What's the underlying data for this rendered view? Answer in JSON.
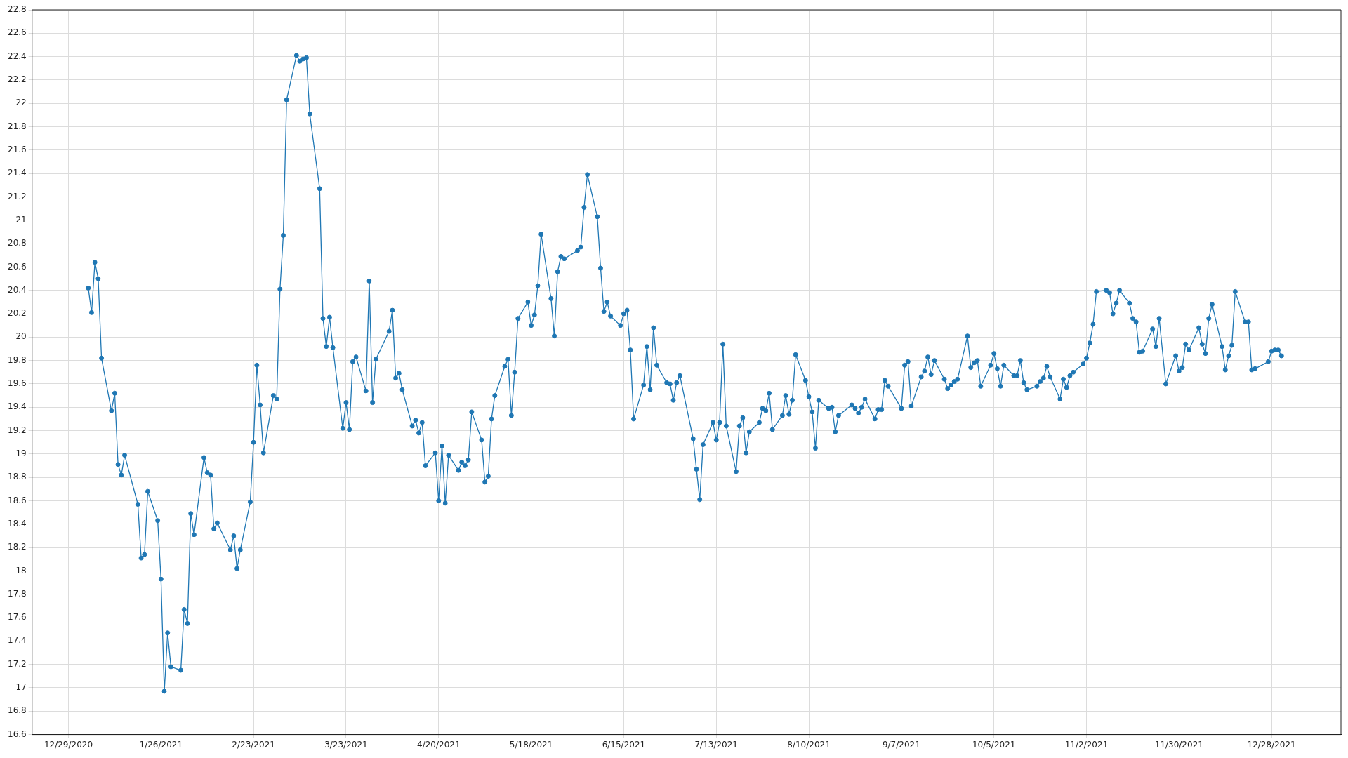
{
  "chart_data": {
    "type": "line",
    "color": "#1f77b4",
    "marker": "circle",
    "line_style": "solid",
    "grid": true,
    "xlim": [
      "2020-12-18",
      "2022-01-18"
    ],
    "xticks": [
      {
        "value": "2020-12-29",
        "label": "12/29/2020"
      },
      {
        "value": "2021-01-26",
        "label": "1/26/2021"
      },
      {
        "value": "2021-02-23",
        "label": "2/23/2021"
      },
      {
        "value": "2021-03-23",
        "label": "3/23/2021"
      },
      {
        "value": "2021-04-20",
        "label": "4/20/2021"
      },
      {
        "value": "2021-05-18",
        "label": "5/18/2021"
      },
      {
        "value": "2021-06-15",
        "label": "6/15/2021"
      },
      {
        "value": "2021-07-13",
        "label": "7/13/2021"
      },
      {
        "value": "2021-08-10",
        "label": "8/10/2021"
      },
      {
        "value": "2021-09-07",
        "label": "9/7/2021"
      },
      {
        "value": "2021-10-05",
        "label": "10/5/2021"
      },
      {
        "value": "2021-11-02",
        "label": "11/2/2021"
      },
      {
        "value": "2021-11-30",
        "label": "11/30/2021"
      },
      {
        "value": "2021-12-28",
        "label": "12/28/2021"
      }
    ],
    "ylim": [
      16.6,
      22.8
    ],
    "yticks": [
      16.6,
      16.8,
      17,
      17.2,
      17.4,
      17.6,
      17.8,
      18,
      18.2,
      18.4,
      18.6,
      18.8,
      19,
      19.2,
      19.4,
      19.6,
      19.8,
      20,
      20.2,
      20.4,
      20.6,
      20.8,
      21,
      21.2,
      21.4,
      21.6,
      21.8,
      22,
      22.2,
      22.4,
      22.6,
      22.8
    ],
    "x": [
      "2021-01-04",
      "2021-01-05",
      "2021-01-06",
      "2021-01-07",
      "2021-01-08",
      "2021-01-11",
      "2021-01-12",
      "2021-01-13",
      "2021-01-14",
      "2021-01-15",
      "2021-01-19",
      "2021-01-20",
      "2021-01-21",
      "2021-01-22",
      "2021-01-25",
      "2021-01-26",
      "2021-01-27",
      "2021-01-28",
      "2021-01-29",
      "2021-02-01",
      "2021-02-02",
      "2021-02-03",
      "2021-02-04",
      "2021-02-05",
      "2021-02-08",
      "2021-02-09",
      "2021-02-10",
      "2021-02-11",
      "2021-02-12",
      "2021-02-16",
      "2021-02-17",
      "2021-02-18",
      "2021-02-19",
      "2021-02-22",
      "2021-02-23",
      "2021-02-24",
      "2021-02-25",
      "2021-02-26",
      "2021-03-01",
      "2021-03-02",
      "2021-03-03",
      "2021-03-04",
      "2021-03-05",
      "2021-03-08",
      "2021-03-09",
      "2021-03-10",
      "2021-03-11",
      "2021-03-12",
      "2021-03-15",
      "2021-03-16",
      "2021-03-17",
      "2021-03-18",
      "2021-03-19",
      "2021-03-22",
      "2021-03-23",
      "2021-03-24",
      "2021-03-25",
      "2021-03-26",
      "2021-03-29",
      "2021-03-30",
      "2021-03-31",
      "2021-04-01",
      "2021-04-05",
      "2021-04-06",
      "2021-04-07",
      "2021-04-08",
      "2021-04-09",
      "2021-04-12",
      "2021-04-13",
      "2021-04-14",
      "2021-04-15",
      "2021-04-16",
      "2021-04-19",
      "2021-04-20",
      "2021-04-21",
      "2021-04-22",
      "2021-04-23",
      "2021-04-26",
      "2021-04-27",
      "2021-04-28",
      "2021-04-29",
      "2021-04-30",
      "2021-05-03",
      "2021-05-04",
      "2021-05-05",
      "2021-05-06",
      "2021-05-07",
      "2021-05-10",
      "2021-05-11",
      "2021-05-12",
      "2021-05-13",
      "2021-05-14",
      "2021-05-17",
      "2021-05-18",
      "2021-05-19",
      "2021-05-20",
      "2021-05-21",
      "2021-05-24",
      "2021-05-25",
      "2021-05-26",
      "2021-05-27",
      "2021-05-28",
      "2021-06-01",
      "2021-06-02",
      "2021-06-03",
      "2021-06-04",
      "2021-06-07",
      "2021-06-08",
      "2021-06-09",
      "2021-06-10",
      "2021-06-11",
      "2021-06-14",
      "2021-06-15",
      "2021-06-16",
      "2021-06-17",
      "2021-06-18",
      "2021-06-21",
      "2021-06-22",
      "2021-06-23",
      "2021-06-24",
      "2021-06-25",
      "2021-06-28",
      "2021-06-29",
      "2021-06-30",
      "2021-07-01",
      "2021-07-02",
      "2021-07-06",
      "2021-07-07",
      "2021-07-08",
      "2021-07-09",
      "2021-07-12",
      "2021-07-13",
      "2021-07-14",
      "2021-07-15",
      "2021-07-16",
      "2021-07-19",
      "2021-07-20",
      "2021-07-21",
      "2021-07-22",
      "2021-07-23",
      "2021-07-26",
      "2021-07-27",
      "2021-07-28",
      "2021-07-29",
      "2021-07-30",
      "2021-08-02",
      "2021-08-03",
      "2021-08-04",
      "2021-08-05",
      "2021-08-06",
      "2021-08-09",
      "2021-08-10",
      "2021-08-11",
      "2021-08-12",
      "2021-08-13",
      "2021-08-16",
      "2021-08-17",
      "2021-08-18",
      "2021-08-19",
      "2021-08-23",
      "2021-08-24",
      "2021-08-25",
      "2021-08-26",
      "2021-08-27",
      "2021-08-30",
      "2021-08-31",
      "2021-09-01",
      "2021-09-02",
      "2021-09-03",
      "2021-09-07",
      "2021-09-08",
      "2021-09-09",
      "2021-09-10",
      "2021-09-13",
      "2021-09-14",
      "2021-09-15",
      "2021-09-16",
      "2021-09-17",
      "2021-09-20",
      "2021-09-21",
      "2021-09-22",
      "2021-09-23",
      "2021-09-24",
      "2021-09-27",
      "2021-09-28",
      "2021-09-29",
      "2021-09-30",
      "2021-10-01",
      "2021-10-04",
      "2021-10-05",
      "2021-10-06",
      "2021-10-07",
      "2021-10-08",
      "2021-10-11",
      "2021-10-12",
      "2021-10-13",
      "2021-10-14",
      "2021-10-15",
      "2021-10-18",
      "2021-10-19",
      "2021-10-20",
      "2021-10-21",
      "2021-10-22",
      "2021-10-25",
      "2021-10-26",
      "2021-10-27",
      "2021-10-28",
      "2021-10-29",
      "2021-11-01",
      "2021-11-02",
      "2021-11-03",
      "2021-11-04",
      "2021-11-05",
      "2021-11-08",
      "2021-11-09",
      "2021-11-10",
      "2021-11-11",
      "2021-11-12",
      "2021-11-15",
      "2021-11-16",
      "2021-11-17",
      "2021-11-18",
      "2021-11-19",
      "2021-11-22",
      "2021-11-23",
      "2021-11-24",
      "2021-11-26",
      "2021-11-29",
      "2021-11-30",
      "2021-12-01",
      "2021-12-02",
      "2021-12-03",
      "2021-12-06",
      "2021-12-07",
      "2021-12-08",
      "2021-12-09",
      "2021-12-10",
      "2021-12-13",
      "2021-12-14",
      "2021-12-15",
      "2021-12-16",
      "2021-12-17",
      "2021-12-20",
      "2021-12-21",
      "2021-12-22",
      "2021-12-23",
      "2021-12-27",
      "2021-12-28",
      "2021-12-29",
      "2021-12-30",
      "2021-12-31"
    ],
    "values": [
      20.42,
      20.21,
      20.64,
      20.5,
      19.82,
      19.37,
      19.52,
      18.91,
      18.82,
      18.99,
      18.57,
      18.11,
      18.14,
      18.68,
      18.43,
      17.93,
      16.97,
      17.47,
      17.18,
      17.15,
      17.67,
      17.55,
      18.49,
      18.31,
      18.97,
      18.84,
      18.82,
      18.36,
      18.41,
      18.18,
      18.3,
      18.02,
      18.18,
      18.59,
      19.1,
      19.76,
      19.42,
      19.01,
      19.5,
      19.47,
      20.41,
      20.87,
      22.03,
      22.41,
      22.36,
      22.38,
      22.39,
      21.91,
      21.27,
      20.16,
      19.92,
      20.17,
      19.91,
      19.22,
      19.44,
      19.21,
      19.79,
      19.83,
      19.54,
      20.48,
      19.44,
      19.81,
      20.05,
      20.23,
      19.65,
      19.69,
      19.55,
      19.24,
      19.29,
      19.18,
      19.27,
      18.9,
      19.01,
      18.6,
      19.07,
      18.58,
      18.99,
      18.86,
      18.93,
      18.9,
      18.95,
      19.36,
      19.12,
      18.76,
      18.81,
      19.3,
      19.5,
      19.75,
      19.81,
      19.33,
      19.7,
      20.16,
      20.3,
      20.1,
      20.19,
      20.44,
      20.88,
      20.33,
      20.01,
      20.56,
      20.69,
      20.67,
      20.74,
      20.77,
      21.11,
      21.39,
      21.03,
      20.59,
      20.22,
      20.3,
      20.18,
      20.1,
      20.2,
      20.23,
      19.89,
      19.3,
      19.59,
      19.92,
      19.55,
      20.08,
      19.76,
      19.61,
      19.6,
      19.46,
      19.61,
      19.67,
      19.13,
      18.87,
      18.61,
      19.08,
      19.27,
      19.12,
      19.27,
      19.94,
      19.24,
      18.85,
      19.24,
      19.31,
      19.01,
      19.19,
      19.27,
      19.39,
      19.37,
      19.52,
      19.21,
      19.33,
      19.5,
      19.34,
      19.46,
      19.85,
      19.63,
      19.49,
      19.36,
      19.05,
      19.46,
      19.39,
      19.4,
      19.19,
      19.33,
      19.42,
      19.39,
      19.35,
      19.4,
      19.47,
      19.3,
      19.38,
      19.38,
      19.63,
      19.58,
      19.39,
      19.76,
      19.79,
      19.41,
      19.66,
      19.71,
      19.83,
      19.68,
      19.8,
      19.64,
      19.56,
      19.59,
      19.62,
      19.64,
      20.01,
      19.74,
      19.78,
      19.8,
      19.58,
      19.76,
      19.86,
      19.73,
      19.58,
      19.76,
      19.67,
      19.67,
      19.8,
      19.61,
      19.55,
      19.58,
      19.62,
      19.65,
      19.75,
      19.66,
      19.47,
      19.64,
      19.57,
      19.67,
      19.7,
      19.77,
      19.82,
      19.95,
      20.11,
      20.39,
      20.4,
      20.38,
      20.2,
      20.29,
      20.4,
      20.29,
      20.16,
      20.13,
      19.87,
      19.88,
      20.07,
      19.92,
      20.16,
      19.6,
      19.84,
      19.71,
      19.74,
      19.94,
      19.89,
      20.08,
      19.94,
      19.86,
      20.16,
      20.28,
      19.92,
      19.72,
      19.84,
      19.93,
      20.39,
      20.13,
      20.13,
      19.72,
      19.73,
      19.79,
      19.88,
      19.89,
      19.89,
      19.84
    ]
  }
}
